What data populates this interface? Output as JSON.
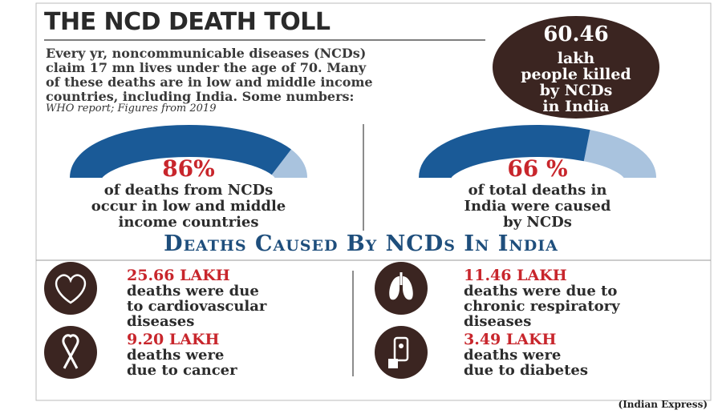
{
  "header": {
    "title": "THE NCD DEATH TOLL"
  },
  "intro": {
    "lines": [
      "Every yr, noncommunicable diseases (NCDs)",
      "claim 17 mn lives under the age of 70. Many",
      "of these deaths are in low and middle income",
      "countries, including India. Some numbers:"
    ],
    "source": "WHO report; Figures from 2019"
  },
  "highlight": {
    "figure": "60.46",
    "lines": [
      "lakh",
      "people killed",
      "by NCDs",
      "in India"
    ]
  },
  "gauges": [
    {
      "value": 86,
      "label": "86%",
      "caption": [
        "of deaths from NCDs",
        "occur in low and middle",
        "income countries"
      ]
    },
    {
      "value": 66,
      "label": "66 %",
      "caption": [
        "of total deaths in",
        "India were caused",
        "by NCDs"
      ]
    }
  ],
  "section_title": "Deaths Caused By NCDs In India",
  "stats": [
    {
      "figure": "25.66 LAKH",
      "lines": [
        "deaths were due",
        "to cardiovascular",
        "diseases"
      ]
    },
    {
      "figure": "11.46 LAKH",
      "lines": [
        "deaths were due to",
        "chronic respiratory",
        "diseases"
      ]
    },
    {
      "figure": "9.20 LAKH",
      "lines": [
        "deaths were",
        "due to cancer"
      ]
    },
    {
      "figure": "3.49 LAKH",
      "lines": [
        "deaths were",
        "due to diabetes"
      ]
    }
  ],
  "credit": "(Indian Express)"
}
